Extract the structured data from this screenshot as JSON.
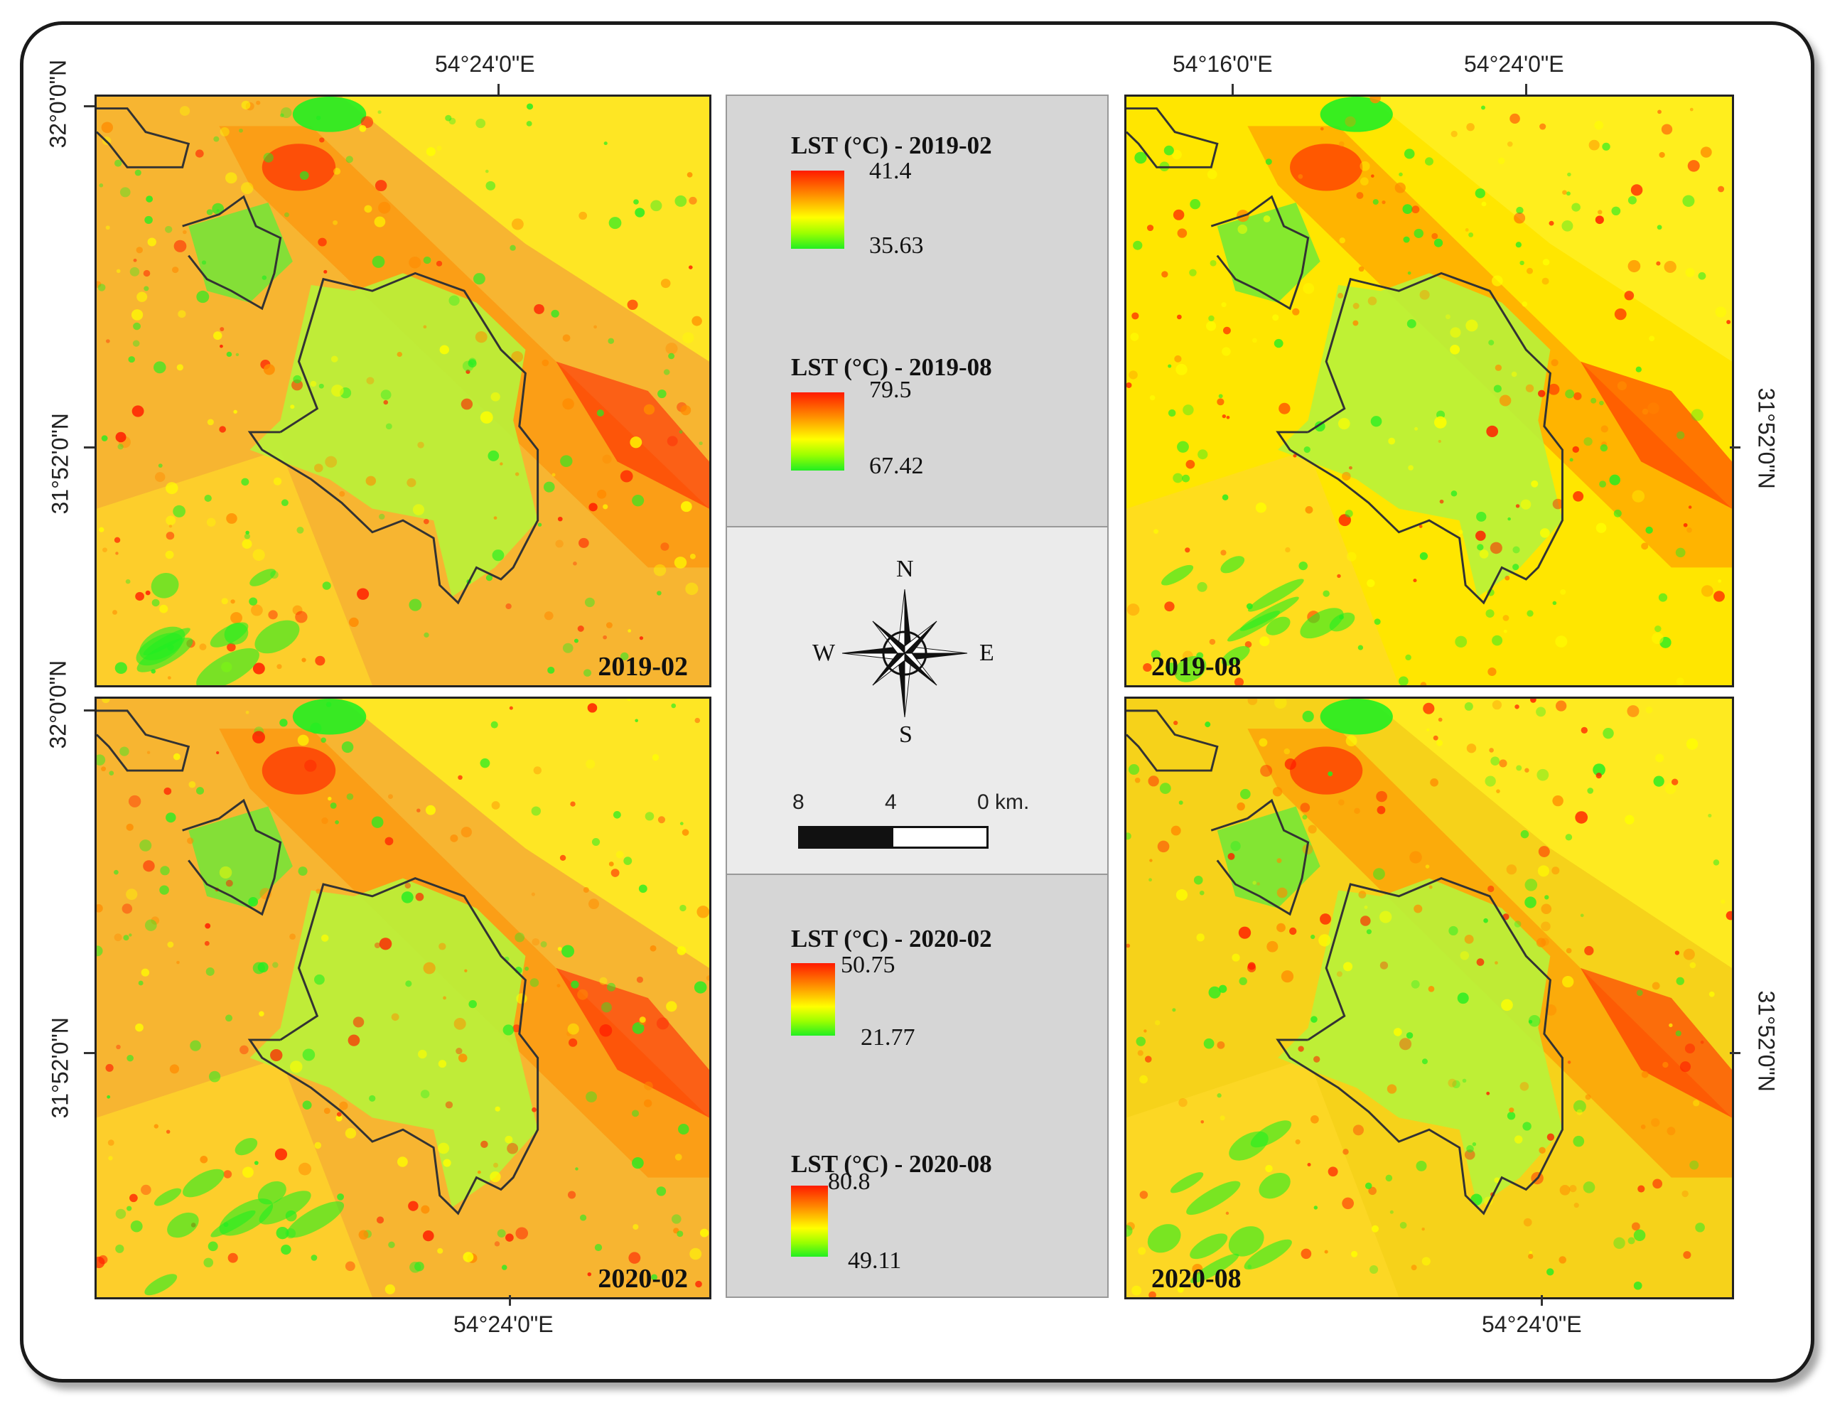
{
  "panels": [
    {
      "label": "2019-02"
    },
    {
      "label": "2019-08"
    },
    {
      "label": "2020-02"
    },
    {
      "label": "2020-08"
    }
  ],
  "coordinates": {
    "lon_top_left": "54°24'0\"E",
    "lon_top_right_1": "54°16'0\"E",
    "lon_top_right_2": "54°24'0\"E",
    "lon_bottom_left": "54°24'0\"E",
    "lon_bottom_right": "54°24'0\"E",
    "lat_left_top_1": "32°0'0\"N",
    "lat_left_top_2": "31°52'0\"N",
    "lat_left_bottom_1": "32°0'0\"N",
    "lat_left_bottom_2": "31°52'0\"N",
    "lat_right_top": "31°52'0\"N",
    "lat_right_bottom": "31°52'0\"N"
  },
  "legends": [
    {
      "title": "LST (°C) - 2019-02",
      "max": "41.4",
      "min": "35.63"
    },
    {
      "title": "LST (°C) - 2019-08",
      "max": "79.5",
      "min": "67.42"
    },
    {
      "title": "LST (°C) - 2020-02",
      "max": "50.75",
      "min": "21.77"
    },
    {
      "title": "LST (°C) - 2020-08",
      "max": "80.8",
      "min": "49.11"
    }
  ],
  "compass": {
    "n": "N",
    "s": "S",
    "e": "E",
    "w": "W"
  },
  "scale_bar": {
    "left": "8",
    "mid": "4",
    "right": "0 km."
  },
  "colors": {
    "hot": "#ff1a00",
    "warm": "#ff8a00",
    "mid": "#ffff00",
    "cool": "#22ee22"
  }
}
